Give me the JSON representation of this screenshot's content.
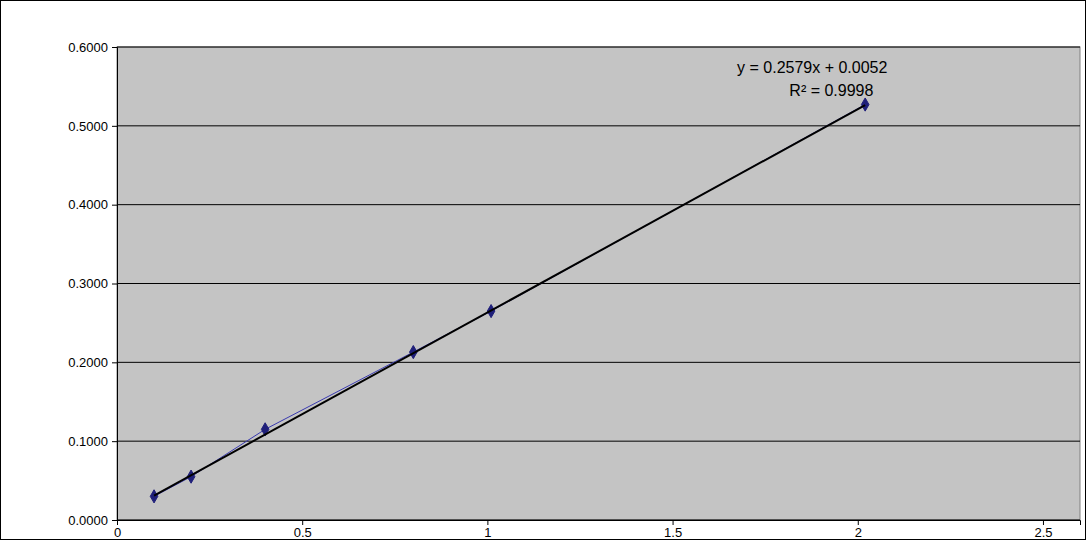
{
  "chart_data": {
    "type": "scatter",
    "annotations": [
      "y = 0.2579x + 0.0052",
      "R² = 0.9998"
    ],
    "series": [
      {
        "color": "#1f1f7a",
        "marker": "diamond",
        "line_style": "solid",
        "x": [
          0.1,
          0.2,
          0.4,
          0.8,
          1.01,
          2.02
        ],
        "values": [
          0.03,
          0.055,
          0.115,
          0.213,
          0.265,
          0.527
        ]
      },
      {
        "type": "line",
        "color": "#000000",
        "line_style": "solid",
        "x": [
          0.1,
          2.02
        ],
        "values": [
          0.031,
          0.5262
        ]
      }
    ],
    "xlim": [
      0,
      2.6
    ],
    "xticks": [
      0,
      0.5,
      1,
      1.5,
      2,
      2.5
    ],
    "ylim": [
      0,
      0.6
    ],
    "yticks": [
      {
        "value": 0,
        "label": "0.0000"
      },
      {
        "value": 0.1,
        "label": "0.1000"
      },
      {
        "value": 0.2,
        "label": "0.2000"
      },
      {
        "value": 0.3,
        "label": "0.3000"
      },
      {
        "value": 0.4,
        "label": "0.4000"
      },
      {
        "value": 0.5,
        "label": "0.5000"
      },
      {
        "value": 0.6,
        "label": "0.6000"
      }
    ],
    "grid": true
  }
}
